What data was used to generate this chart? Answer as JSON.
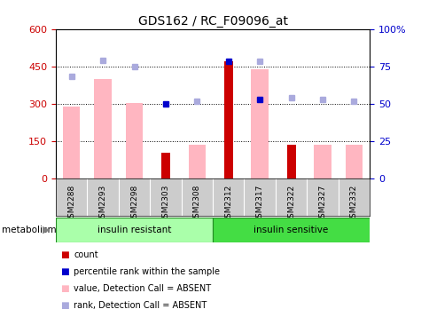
{
  "title": "GDS162 / RC_F09096_at",
  "samples": [
    "GSM2288",
    "GSM2293",
    "GSM2298",
    "GSM2303",
    "GSM2308",
    "GSM2312",
    "GSM2317",
    "GSM2322",
    "GSM2327",
    "GSM2332"
  ],
  "count_values": [
    0,
    0,
    0,
    105,
    0,
    470,
    0,
    135,
    0,
    0
  ],
  "percentile_rank": [
    null,
    null,
    null,
    300,
    null,
    470,
    320,
    null,
    null,
    null
  ],
  "value_absent": [
    290,
    400,
    305,
    null,
    135,
    null,
    440,
    null,
    135,
    135
  ],
  "rank_absent": [
    410,
    475,
    450,
    null,
    310,
    null,
    470,
    325,
    320,
    310
  ],
  "ylim_left": [
    0,
    600
  ],
  "ylim_right": [
    0,
    100
  ],
  "yticks_left": [
    0,
    150,
    300,
    450,
    600
  ],
  "yticks_right": [
    0,
    25,
    50,
    75,
    100
  ],
  "group1_color": "#AAFFAA",
  "group2_color": "#44DD44",
  "group1_label": "insulin resistant",
  "group2_label": "insulin sensitive",
  "group1_indices": [
    0,
    4
  ],
  "group2_indices": [
    5,
    9
  ],
  "bar_color_count": "#CC0000",
  "bar_color_value_absent": "#FFB6C1",
  "dot_color_rank": "#0000CC",
  "dot_color_rank_absent": "#AAAADD",
  "tick_label_color_left": "#CC0000",
  "tick_label_color_right": "#0000CC",
  "legend_items": [
    {
      "color": "#CC0000",
      "label": "count"
    },
    {
      "color": "#0000CC",
      "label": "percentile rank within the sample"
    },
    {
      "color": "#FFB6C1",
      "label": "value, Detection Call = ABSENT"
    },
    {
      "color": "#AAAADD",
      "label": "rank, Detection Call = ABSENT"
    }
  ]
}
